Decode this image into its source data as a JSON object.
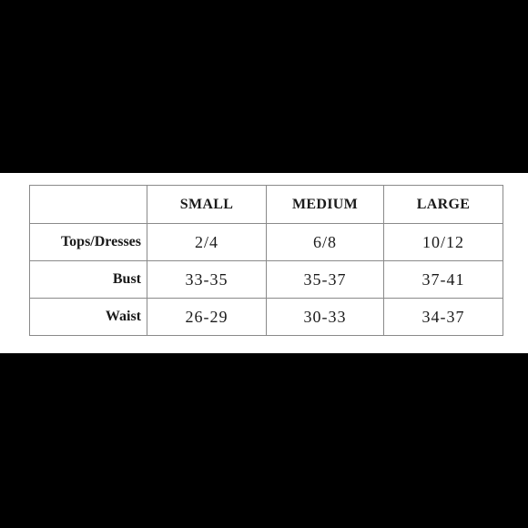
{
  "table": {
    "columns": [
      "SMALL",
      "MEDIUM",
      "LARGE"
    ],
    "rows": [
      {
        "label": "Tops/Dresses",
        "values": [
          "2/4",
          "6/8",
          "10/12"
        ]
      },
      {
        "label": "Bust",
        "values": [
          "33-35",
          "35-37",
          "37-41"
        ]
      },
      {
        "label": "Waist",
        "values": [
          "26-29",
          "30-33",
          "34-37"
        ]
      }
    ]
  }
}
